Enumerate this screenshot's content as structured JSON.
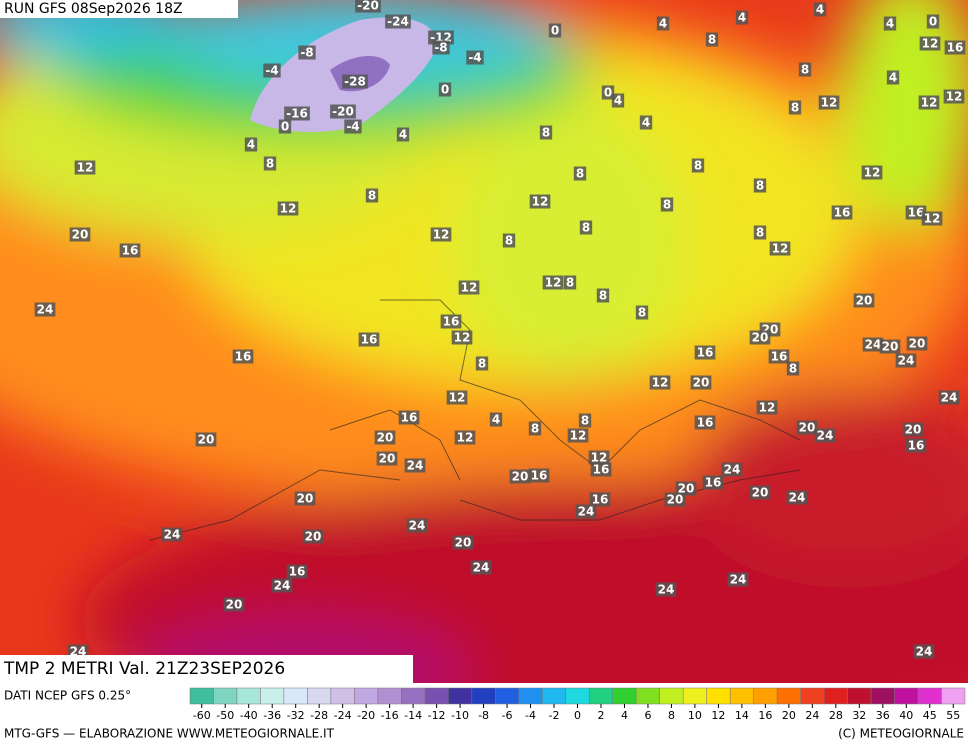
{
  "header": {
    "run": "RUN GFS 08Sep2026 18Z"
  },
  "footer": {
    "field": "TMP 2 METRI Val. 21Z23SEP2026",
    "source": "DATI NCEP GFS 0.25°",
    "credit": "MTG-GFS — ELABORAZIONE WWW.METEOGIORNALE.IT",
    "copyright": "(C) METEOGIORNALE"
  },
  "map_labels": [
    -20,
    -24,
    -12,
    -8,
    -8,
    -4,
    -4,
    -28,
    -16,
    -20,
    0,
    -4,
    4,
    0,
    0,
    4,
    4,
    4,
    4,
    0,
    12,
    16,
    8,
    8,
    4,
    12,
    12,
    12,
    8,
    0,
    4,
    4,
    8,
    4,
    8,
    12,
    8,
    8,
    8,
    8,
    12,
    12,
    12,
    8,
    16,
    16,
    12,
    20,
    16,
    12,
    8,
    8,
    8,
    12,
    24,
    12,
    12,
    8,
    8,
    8,
    20,
    16,
    12,
    16,
    16,
    8,
    16,
    20,
    20,
    24,
    20,
    20,
    16,
    8,
    24,
    12,
    20,
    12,
    24,
    12,
    16,
    4,
    16,
    8,
    8,
    20,
    24,
    20,
    16,
    20,
    12,
    12,
    20,
    12,
    20,
    24,
    16,
    20,
    16,
    24,
    16,
    20,
    20,
    24,
    20,
    16,
    20,
    24,
    24,
    24,
    20,
    20,
    16,
    24,
    24,
    24,
    24,
    20,
    24,
    24
  ],
  "scale": {
    "ticks": [
      -60,
      -50,
      -40,
      -36,
      -32,
      -28,
      -24,
      -20,
      -16,
      -14,
      -12,
      -10,
      -8,
      -6,
      -4,
      -2,
      0,
      2,
      4,
      6,
      8,
      10,
      12,
      14,
      16,
      20,
      24,
      28,
      32,
      36,
      40,
      45,
      55
    ],
    "colors": [
      "#3fbfa0",
      "#7fd6c0",
      "#a8e6d8",
      "#c8f0e8",
      "#d8e8f8",
      "#d8d8f0",
      "#d0c0e8",
      "#c0a8e0",
      "#b090d0",
      "#9870c0",
      "#7850b0",
      "#4030a0",
      "#2040c0",
      "#2060e0",
      "#2090f0",
      "#20b8f0",
      "#20d8e0",
      "#20d080",
      "#30d030",
      "#80e020",
      "#c0f020",
      "#f0f020",
      "#ffe000",
      "#ffc000",
      "#ffa000",
      "#ff7000",
      "#f04020",
      "#e02020",
      "#c01030",
      "#a01060",
      "#c010a0",
      "#e030d0",
      "#f0a0f0"
    ]
  }
}
